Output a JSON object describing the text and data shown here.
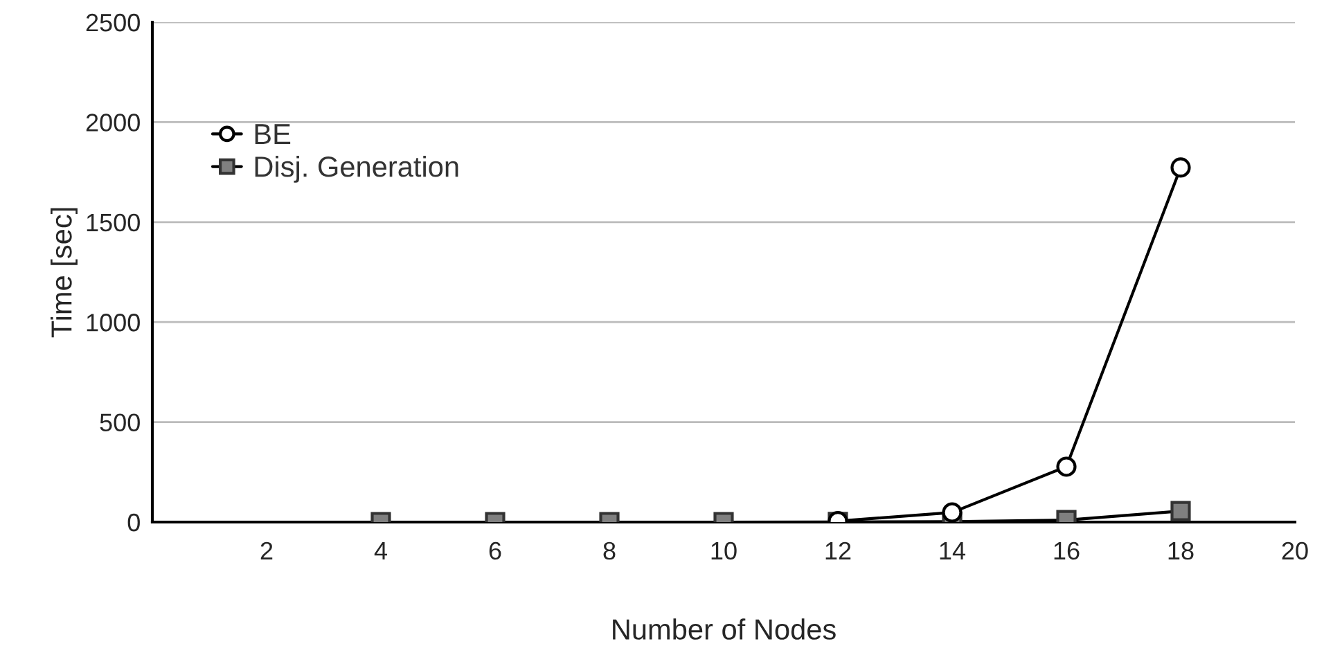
{
  "chart_data": {
    "type": "line",
    "xlabel": "Number of Nodes",
    "ylabel": "Time [sec]",
    "x": [
      4,
      6,
      8,
      10,
      12,
      14,
      16,
      18
    ],
    "series": [
      {
        "name": "BE",
        "color": "#000000",
        "marker": "circle",
        "values": [
          null,
          null,
          null,
          null,
          5,
          48,
          277,
          1773
        ]
      },
      {
        "name": "Disj. Generation",
        "color": "#808080",
        "marker": "square",
        "values": [
          0,
          0,
          0,
          0,
          1,
          2,
          10,
          55
        ]
      }
    ],
    "xlim": [
      0,
      20
    ],
    "xticks": [
      2,
      4,
      6,
      8,
      10,
      12,
      14,
      16,
      18,
      20
    ],
    "ylim": [
      0,
      2500
    ],
    "yticks": [
      0,
      500,
      1000,
      1500,
      2000,
      2500
    ],
    "grid": "y",
    "legend": "top left",
    "line_style": "solid"
  }
}
